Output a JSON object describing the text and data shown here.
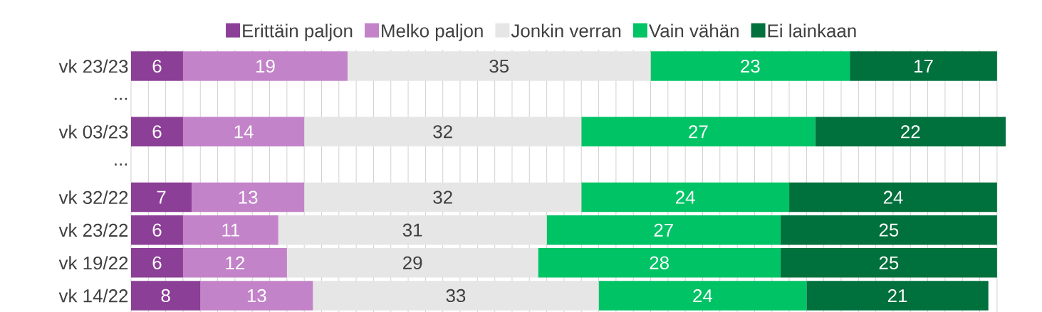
{
  "chart_data": {
    "type": "bar",
    "orientation": "horizontal",
    "stacked": true,
    "data_labels": true,
    "legend": "top",
    "grid": "x",
    "tick_labels": "y",
    "categories": [
      "vk 23/23",
      "...",
      "vk 03/23",
      "...",
      "vk 32/22",
      "vk 23/22",
      "vk 19/22",
      "vk 14/22"
    ],
    "series": [
      {
        "name": "Erittäin paljon",
        "color": "#8b3f96",
        "values": [
          6,
          null,
          6,
          null,
          7,
          6,
          6,
          8
        ]
      },
      {
        "name": "Melko paljon",
        "color": "#c383c9",
        "values": [
          19,
          null,
          14,
          null,
          13,
          11,
          12,
          13
        ]
      },
      {
        "name": "Jonkin verran",
        "color": "#e6e6e6",
        "values": [
          35,
          null,
          32,
          null,
          32,
          31,
          29,
          33
        ]
      },
      {
        "name": "Vain vähän",
        "color": "#00c365",
        "values": [
          23,
          null,
          27,
          null,
          24,
          27,
          28,
          24
        ]
      },
      {
        "name": "Ei lainkaan",
        "color": "#00703c",
        "values": [
          17,
          null,
          22,
          null,
          24,
          25,
          25,
          21
        ]
      }
    ]
  }
}
